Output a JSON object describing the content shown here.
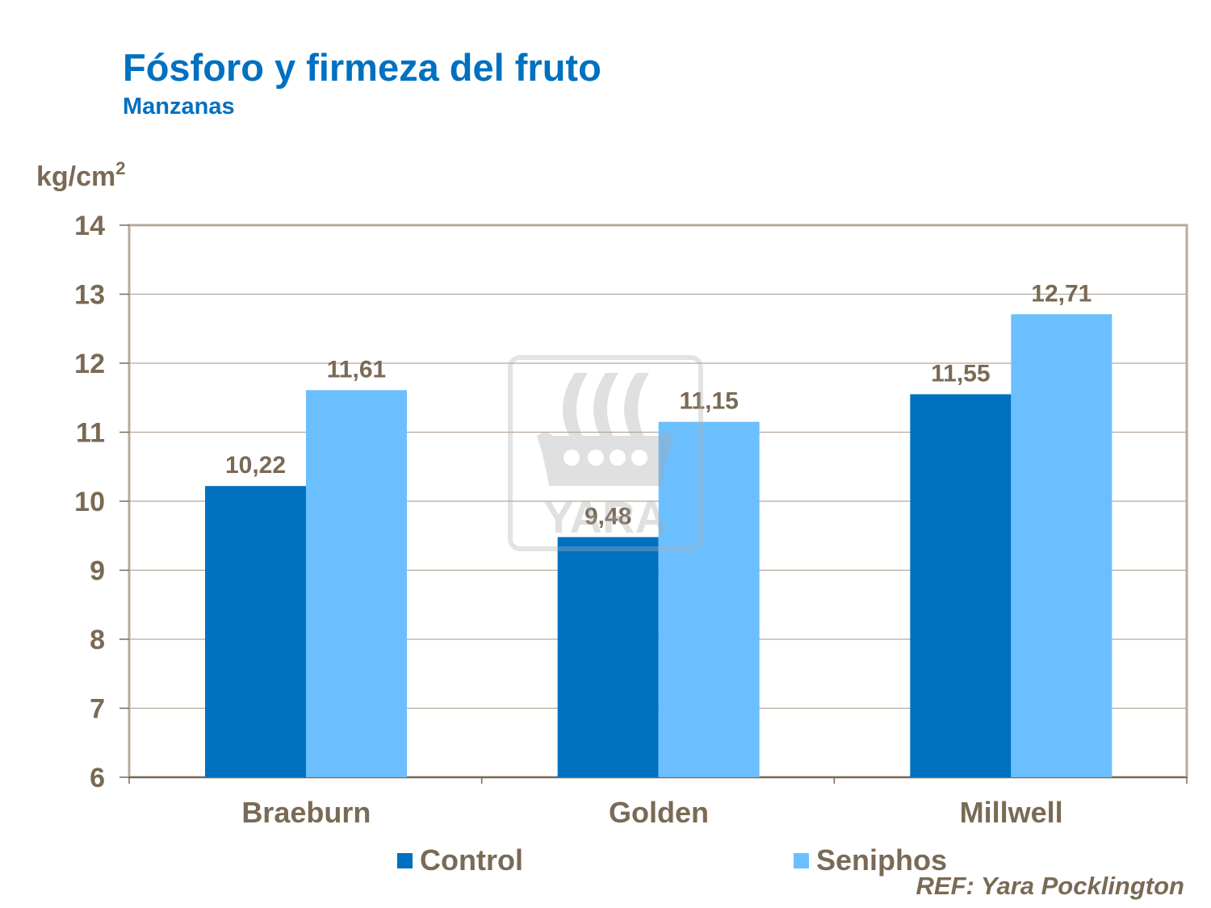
{
  "chart_data": {
    "type": "bar",
    "title": "Fósforo y firmeza del fruto",
    "subtitle": "Manzanas",
    "ylabel": "kg/cm",
    "ylabel_superscript": "2",
    "xlabel": "",
    "ylim": [
      6,
      14
    ],
    "yticks": [
      "6",
      "7",
      "8",
      "9",
      "10",
      "11",
      "12",
      "13",
      "14"
    ],
    "grid": true,
    "categories": [
      "Braeburn",
      "Golden",
      "Millwell"
    ],
    "series": [
      {
        "name": "Control",
        "color": "#0070c0",
        "values": [
          10.22,
          9.48,
          11.55
        ],
        "labels": [
          "10,22",
          "9,48",
          "11,55"
        ]
      },
      {
        "name": "Seniphos",
        "color": "#6bbfff",
        "values": [
          11.61,
          11.15,
          12.71
        ],
        "labels": [
          "11,61",
          "11,15",
          "12,71"
        ]
      }
    ],
    "legend_position": "bottom",
    "watermark": "YARA",
    "reference": "REF: Yara Pocklington"
  }
}
